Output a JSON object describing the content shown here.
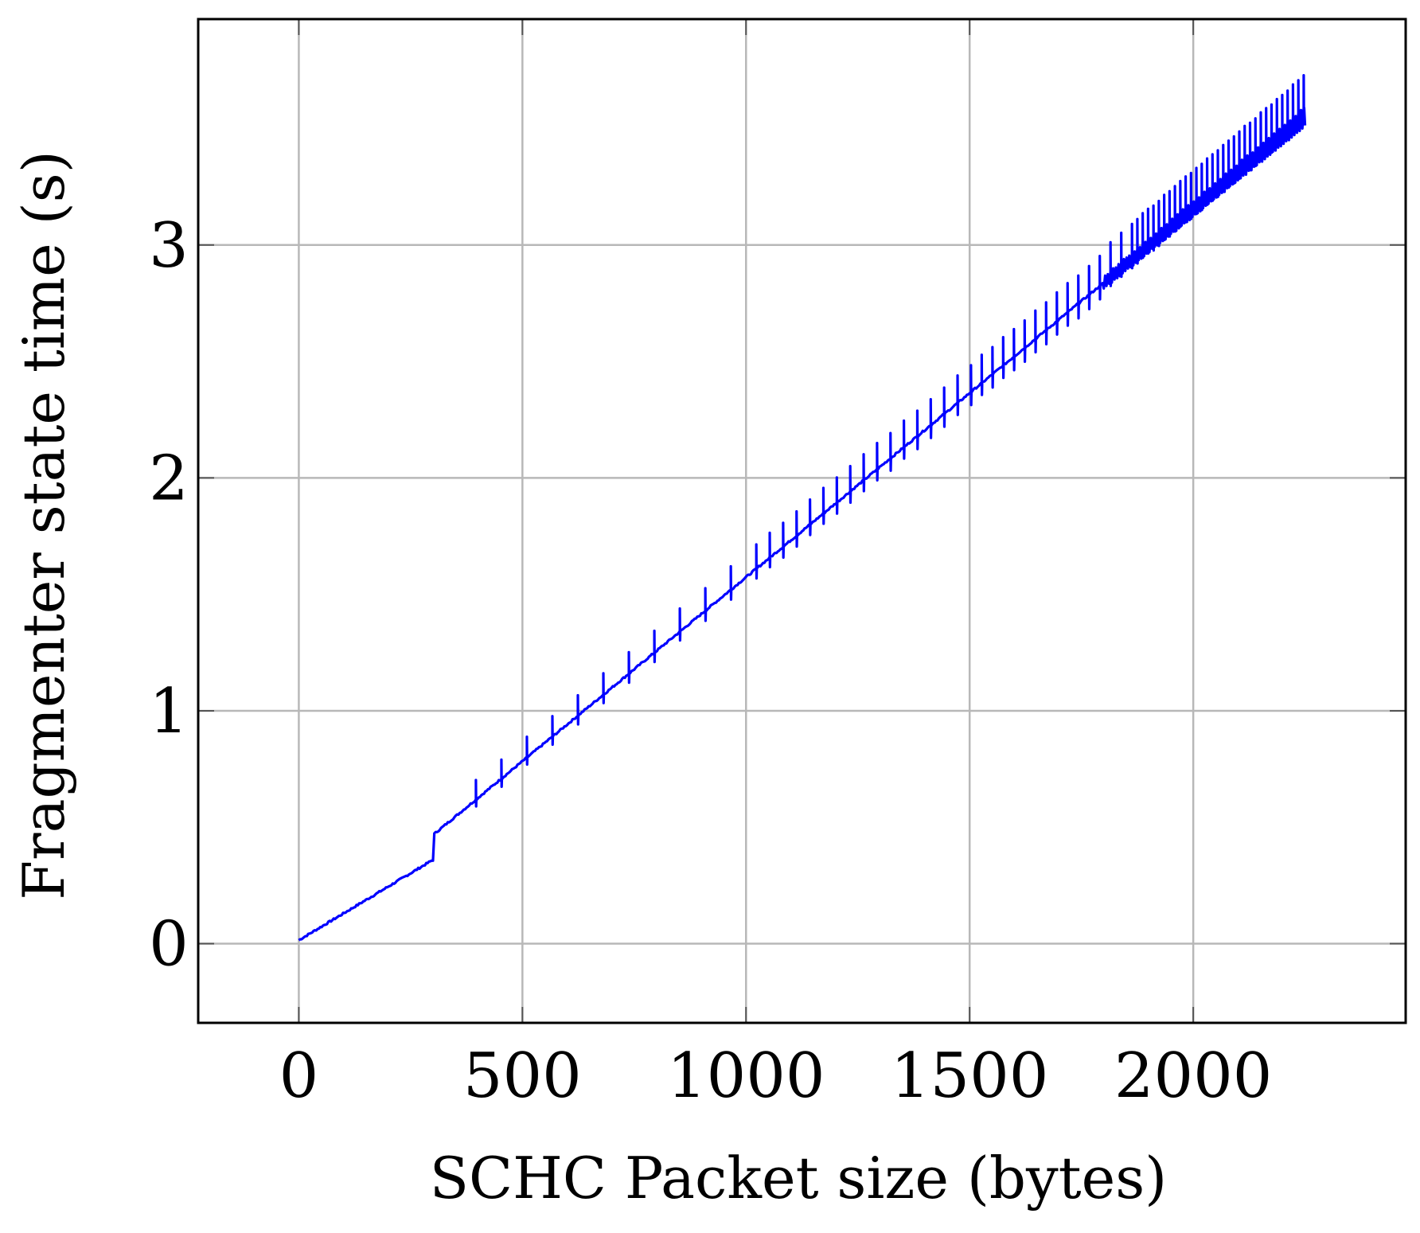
{
  "chart_data": {
    "type": "line",
    "title": "",
    "xlabel": "SCHC Packet size (bytes)",
    "ylabel": "Fragmenter state time (s)",
    "xlim": [
      -225,
      2475
    ],
    "ylim": [
      -0.34,
      3.97
    ],
    "x_ticks": [
      0,
      500,
      1000,
      1500,
      2000
    ],
    "y_ticks": [
      0,
      1,
      2,
      3
    ],
    "grid": true,
    "line_color": "#0000ff",
    "series": [
      {
        "trend": [
          [
            0,
            0.015
          ],
          [
            300,
            0.36
          ],
          [
            302,
            0.47
          ],
          [
            2250,
            3.55
          ]
        ],
        "step_bytes": 3,
        "jitter": 0.008,
        "period_segments": [
          [
            300,
            1000,
            55
          ],
          [
            1000,
            1500,
            30
          ],
          [
            1500,
            1850,
            22
          ],
          [
            1850,
            2250,
            12
          ]
        ],
        "spike_height": [
          0.08,
          0.14
        ],
        "dip_depth": 0.07,
        "oscillation_start": 1800,
        "oscillation_amplitude": [
          0.05,
          0.08
        ]
      }
    ]
  }
}
